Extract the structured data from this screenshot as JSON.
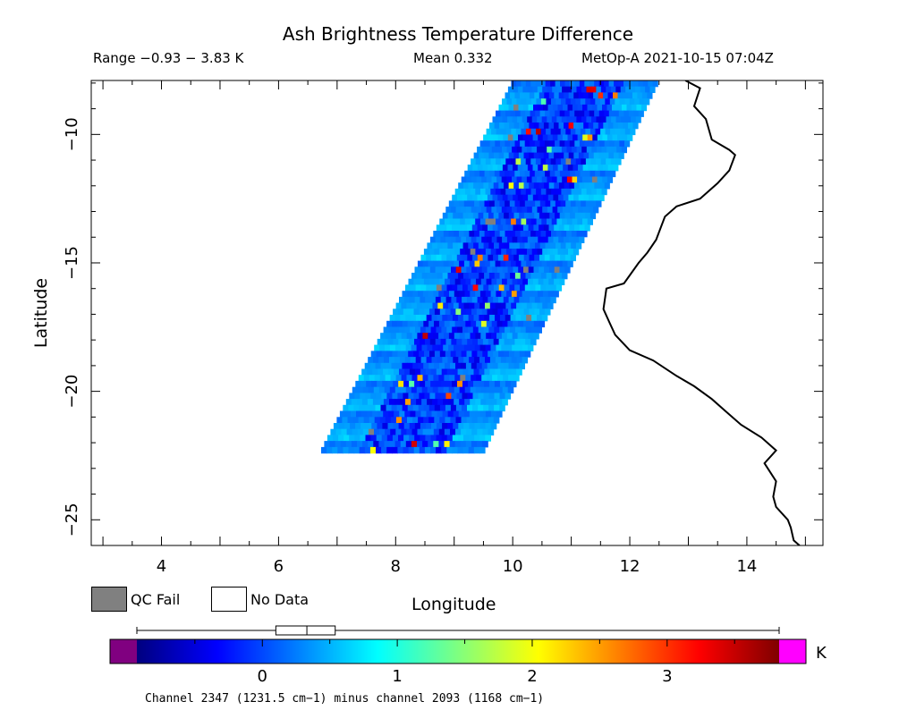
{
  "header": {
    "title": "Ash Brightness Temperature Difference",
    "range": "Range −0.93 − 3.83 K",
    "mean": "Mean 0.332",
    "satellite": "MetOp-A 2021-10-15 07:04Z"
  },
  "map": {
    "xlabel": "Longitude",
    "ylabel": "Latitude",
    "x_range": [
      2.8,
      15.3
    ],
    "y_range": [
      -26.0,
      -7.9
    ],
    "x_ticks": [
      4,
      6,
      8,
      10,
      12,
      14
    ],
    "y_ticks": [
      -10,
      -15,
      -20,
      -25
    ],
    "x_tick_labels": [
      "4",
      "6",
      "8",
      "10",
      "12",
      "14"
    ],
    "y_tick_labels": [
      "−10",
      "−15",
      "−20",
      "−25"
    ],
    "swath": {
      "top_lon": [
        10.0,
        12.5
      ],
      "top_lat": -7.9,
      "bottom_lon": [
        6.7,
        9.5
      ],
      "bottom_lat": -22.4,
      "dominant_value_range": [
        -0.3,
        0.8
      ]
    },
    "coastline": [
      [
        12.95,
        -7.9
      ],
      [
        13.2,
        -8.2
      ],
      [
        13.1,
        -8.9
      ],
      [
        13.3,
        -9.4
      ],
      [
        13.4,
        -10.2
      ],
      [
        13.7,
        -10.6
      ],
      [
        13.8,
        -10.8
      ],
      [
        13.7,
        -11.4
      ],
      [
        13.5,
        -11.9
      ],
      [
        13.2,
        -12.5
      ],
      [
        12.8,
        -12.8
      ],
      [
        12.6,
        -13.2
      ],
      [
        12.45,
        -14.1
      ],
      [
        12.3,
        -14.6
      ],
      [
        12.15,
        -15.0
      ],
      [
        11.9,
        -15.8
      ],
      [
        11.6,
        -16.0
      ],
      [
        11.55,
        -16.8
      ],
      [
        11.65,
        -17.3
      ],
      [
        11.75,
        -17.8
      ],
      [
        12.0,
        -18.4
      ],
      [
        12.4,
        -18.8
      ],
      [
        12.8,
        -19.4
      ],
      [
        13.1,
        -19.8
      ],
      [
        13.4,
        -20.3
      ],
      [
        13.65,
        -20.8
      ],
      [
        13.9,
        -21.3
      ],
      [
        14.25,
        -21.8
      ],
      [
        14.5,
        -22.3
      ],
      [
        14.3,
        -22.8
      ],
      [
        14.5,
        -23.5
      ],
      [
        14.45,
        -24.1
      ],
      [
        14.5,
        -24.5
      ],
      [
        14.7,
        -25.0
      ],
      [
        14.75,
        -25.3
      ],
      [
        14.8,
        -25.8
      ],
      [
        14.9,
        -26.0
      ]
    ]
  },
  "legend": {
    "qc_fail": "QC Fail",
    "no_data": "No Data",
    "qc_fail_color": "#808080",
    "no_data_color": "#ffffff"
  },
  "colorbar": {
    "min": -0.93,
    "max": 3.83,
    "ticks": [
      0,
      1,
      2,
      3
    ],
    "tick_labels": [
      "0",
      "1",
      "2",
      "3"
    ],
    "unit": "K",
    "under_color": "#800080",
    "over_color": "#ff00ff",
    "stops": [
      "#00007f",
      "#0000ff",
      "#007fff",
      "#00ffff",
      "#7fff7f",
      "#ffff00",
      "#ff7f00",
      "#ff0000",
      "#7f0000"
    ],
    "boxplot": {
      "whisker_low": -0.93,
      "q1": 0.1,
      "median": 0.33,
      "q3": 0.54,
      "whisker_high": 3.83
    }
  },
  "footnote": "Channel 2347 (1231.5 cm−1) minus channel 2093 (1168 cm−1)"
}
